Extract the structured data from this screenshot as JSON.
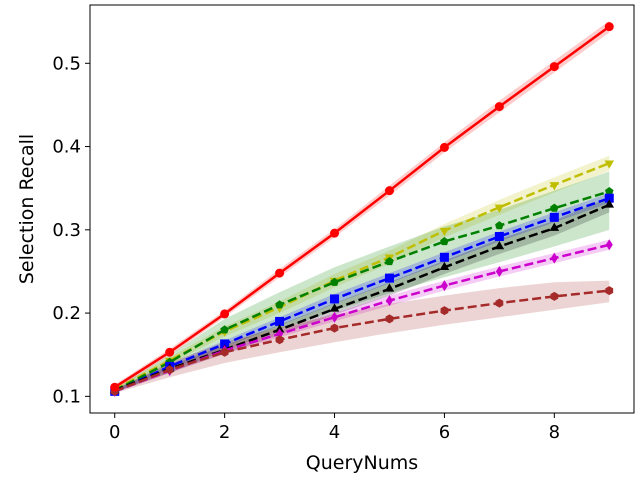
{
  "chart_data": {
    "type": "line",
    "title": "",
    "xlabel": "QueryNums",
    "ylabel": "Selection Recall",
    "xlim": [
      -0.45,
      9.45
    ],
    "ylim": [
      0.08,
      0.57
    ],
    "xticks": [
      0,
      2,
      4,
      6,
      8
    ],
    "yticks": [
      0.1,
      0.2,
      0.3,
      0.4,
      0.5
    ],
    "xtick_labels": [
      "0",
      "2",
      "4",
      "6",
      "8"
    ],
    "ytick_labels": [
      "0.1",
      "0.2",
      "0.3",
      "0.4",
      "0.5"
    ],
    "grid": false,
    "legend": "none",
    "x": [
      0,
      1,
      2,
      3,
      4,
      5,
      6,
      7,
      8,
      9
    ],
    "series": [
      {
        "color": "#ff0000",
        "marker": "circle",
        "linestyle": "solid",
        "values": [
          0.111,
          0.153,
          0.199,
          0.248,
          0.296,
          0.347,
          0.399,
          0.448,
          0.496,
          0.544
        ],
        "band_lower": [
          0.108,
          0.149,
          0.195,
          0.243,
          0.291,
          0.341,
          0.393,
          0.441,
          0.489,
          0.537
        ],
        "band_upper": [
          0.114,
          0.157,
          0.203,
          0.253,
          0.301,
          0.353,
          0.405,
          0.455,
          0.503,
          0.551
        ]
      },
      {
        "color": "#bfbf00",
        "marker": "triangle-down",
        "linestyle": "dashed",
        "values": [
          0.108,
          0.143,
          0.178,
          0.207,
          0.239,
          0.267,
          0.299,
          0.327,
          0.354,
          0.38
        ],
        "band_lower": [
          0.106,
          0.139,
          0.172,
          0.2,
          0.231,
          0.259,
          0.291,
          0.318,
          0.345,
          0.371
        ],
        "band_upper": [
          0.11,
          0.147,
          0.184,
          0.214,
          0.247,
          0.275,
          0.307,
          0.336,
          0.363,
          0.389
        ]
      },
      {
        "color": "#008000",
        "marker": "pentagon",
        "linestyle": "dashed",
        "values": [
          0.107,
          0.141,
          0.18,
          0.21,
          0.237,
          0.262,
          0.286,
          0.305,
          0.326,
          0.346
        ],
        "band_lower": [
          0.105,
          0.128,
          0.155,
          0.18,
          0.203,
          0.224,
          0.243,
          0.261,
          0.28,
          0.3
        ],
        "band_upper": [
          0.109,
          0.15,
          0.193,
          0.225,
          0.255,
          0.28,
          0.304,
          0.324,
          0.347,
          0.37
        ]
      },
      {
        "color": "#0000ff",
        "marker": "square",
        "linestyle": "dashed",
        "values": [
          0.106,
          0.136,
          0.163,
          0.19,
          0.217,
          0.242,
          0.267,
          0.292,
          0.315,
          0.338
        ],
        "band_lower": [
          0.104,
          0.133,
          0.159,
          0.185,
          0.211,
          0.236,
          0.261,
          0.286,
          0.309,
          0.332
        ],
        "band_upper": [
          0.108,
          0.139,
          0.167,
          0.195,
          0.223,
          0.248,
          0.273,
          0.298,
          0.321,
          0.344
        ]
      },
      {
        "color": "#000000",
        "marker": "triangle-up",
        "linestyle": "dashed",
        "values": [
          0.107,
          0.133,
          0.156,
          0.18,
          0.205,
          0.229,
          0.255,
          0.28,
          0.302,
          0.33
        ],
        "band_lower": [
          0.105,
          0.129,
          0.151,
          0.174,
          0.198,
          0.221,
          0.247,
          0.271,
          0.293,
          0.321
        ],
        "band_upper": [
          0.109,
          0.137,
          0.161,
          0.186,
          0.212,
          0.237,
          0.263,
          0.289,
          0.311,
          0.339
        ]
      },
      {
        "color": "#cc00cc",
        "marker": "diamond",
        "linestyle": "dashed",
        "values": [
          0.106,
          0.131,
          0.155,
          0.175,
          0.195,
          0.215,
          0.233,
          0.25,
          0.266,
          0.282
        ],
        "band_lower": [
          0.104,
          0.128,
          0.151,
          0.171,
          0.19,
          0.209,
          0.227,
          0.244,
          0.26,
          0.276
        ],
        "band_upper": [
          0.108,
          0.134,
          0.159,
          0.179,
          0.2,
          0.221,
          0.239,
          0.256,
          0.272,
          0.288
        ]
      },
      {
        "color": "#a52a2a",
        "marker": "hexagon",
        "linestyle": "dashed",
        "values": [
          0.106,
          0.132,
          0.153,
          0.168,
          0.182,
          0.193,
          0.203,
          0.212,
          0.22,
          0.227
        ],
        "band_lower": [
          0.104,
          0.123,
          0.14,
          0.153,
          0.165,
          0.176,
          0.186,
          0.195,
          0.204,
          0.213
        ],
        "band_upper": [
          0.108,
          0.141,
          0.165,
          0.183,
          0.198,
          0.211,
          0.221,
          0.23,
          0.237,
          0.239
        ]
      }
    ]
  }
}
